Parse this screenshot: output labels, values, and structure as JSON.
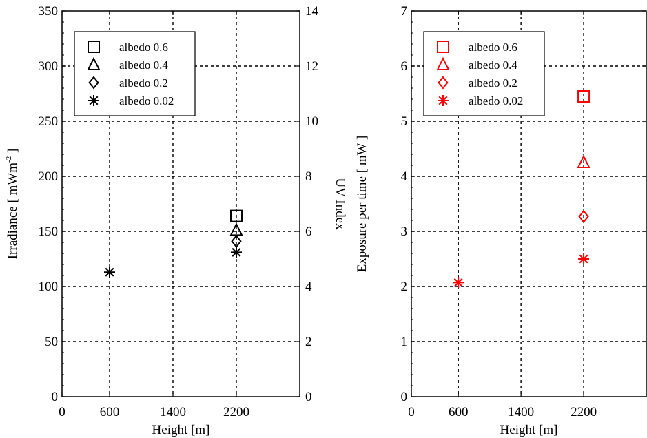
{
  "chart_data": [
    {
      "type": "scatter",
      "title": "",
      "xlabel": "Height [m]",
      "ylabel": "Irradiance [ mWm",
      "ylabel_superscript": "-2",
      "ylabel_close": " ]",
      "y2label": "UV Index",
      "xlim": [
        0,
        3000
      ],
      "ylim": [
        0,
        350
      ],
      "y2lim": [
        0,
        14
      ],
      "xticks": [
        0,
        600,
        1400,
        2200
      ],
      "xtick_labels": [
        "0",
        "600",
        "1400",
        "2200"
      ],
      "yticks": [
        0,
        50,
        100,
        150,
        200,
        250,
        300,
        350
      ],
      "ytick_labels": [
        "0",
        "50",
        "100",
        "150",
        "200",
        "250",
        "300",
        "350"
      ],
      "y2ticks": [
        0,
        2,
        4,
        6,
        8,
        10,
        12,
        14
      ],
      "y2tick_labels": [
        "0",
        "2",
        "4",
        "6",
        "8",
        "10",
        "12",
        "14"
      ],
      "grid": true,
      "legend_position": "top-left",
      "color": "#000000",
      "series": [
        {
          "name": "albedo 0.6",
          "marker": "square",
          "x": [
            2200
          ],
          "y": [
            164
          ]
        },
        {
          "name": "albedo 0.4",
          "marker": "triangle",
          "x": [
            2200
          ],
          "y": [
            151
          ]
        },
        {
          "name": "albedo 0.2",
          "marker": "diamond",
          "x": [
            2200
          ],
          "y": [
            141
          ]
        },
        {
          "name": "albedo 0.02",
          "marker": "asterisk",
          "x": [
            600,
            2200
          ],
          "y": [
            113,
            131
          ]
        }
      ]
    },
    {
      "type": "scatter",
      "title": "",
      "xlabel": "Height [m]",
      "ylabel": "Exposure per time [ mW ]",
      "xlim": [
        0,
        3000
      ],
      "ylim": [
        0,
        7
      ],
      "xticks": [
        0,
        600,
        1400,
        2200
      ],
      "xtick_labels": [
        "0",
        "600",
        "1400",
        "2200"
      ],
      "yticks": [
        0,
        1,
        2,
        3,
        4,
        5,
        6,
        7
      ],
      "ytick_labels": [
        "0",
        "1",
        "2",
        "3",
        "4",
        "5",
        "6",
        "7"
      ],
      "grid": true,
      "legend_position": "top-left",
      "color": "#ff0000",
      "series": [
        {
          "name": "albedo 0.6",
          "marker": "square",
          "x": [
            2200
          ],
          "y": [
            5.45
          ]
        },
        {
          "name": "albedo 0.4",
          "marker": "triangle",
          "x": [
            2200
          ],
          "y": [
            4.25
          ]
        },
        {
          "name": "albedo 0.2",
          "marker": "diamond",
          "x": [
            2200
          ],
          "y": [
            3.27
          ]
        },
        {
          "name": "albedo 0.02",
          "marker": "asterisk",
          "x": [
            600,
            2200
          ],
          "y": [
            2.07,
            2.5
          ]
        }
      ]
    }
  ]
}
